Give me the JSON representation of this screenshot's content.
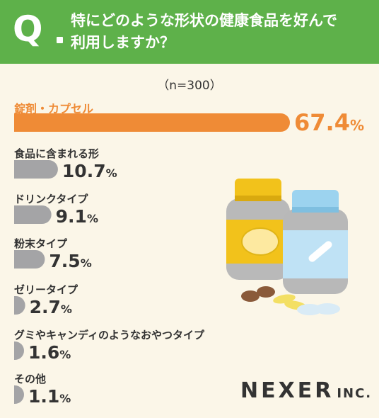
{
  "header": {
    "q_letter": "Q",
    "question_line1": "特にどのような形状の健康食品を好んで",
    "question_line2": "利用しますか？"
  },
  "n_label": "（n=300）",
  "logo": {
    "main": "NEXER",
    "suffix": "INC."
  },
  "colors": {
    "accent": "#ef8b36",
    "bar_gray": "#a4a4a6",
    "header_green": "#5eb14a",
    "background": "#fbf6e8"
  },
  "chart_data": {
    "type": "bar",
    "orientation": "horizontal",
    "categories": [
      "錠剤・カプセル",
      "食品に含まれる形",
      "ドリンクタイプ",
      "粉末タイプ",
      "ゼリータイプ",
      "グミやキャンディのようなおやつタイプ",
      "その他"
    ],
    "values": [
      67.4,
      10.7,
      9.1,
      7.5,
      2.7,
      1.6,
      1.1
    ],
    "value_labels": [
      "67.4",
      "10.7",
      "9.1",
      "7.5",
      "2.7",
      "1.6",
      "1.1"
    ],
    "unit": "%",
    "highlight_index": 0,
    "xlim": [
      0,
      67.4
    ]
  }
}
